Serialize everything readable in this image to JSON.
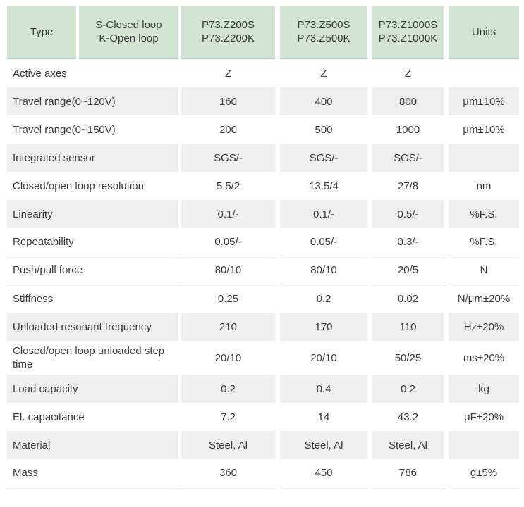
{
  "colors": {
    "header_green": "#d3e4d3",
    "header_green_border": "#a8cfc0",
    "shaded_row": "#efefef",
    "divider": "#dbdbdb",
    "text": "#3b3b3b"
  },
  "table": {
    "header": {
      "type_label": "Type",
      "loop_line1": "S-Closed loop",
      "loop_line2": "K-Open loop",
      "columns": [
        {
          "line1": "P73.Z200S",
          "line2": "P73.Z200K"
        },
        {
          "line1": "P73.Z500S",
          "line2": "P73.Z500K"
        },
        {
          "line1": "P73.Z1000S",
          "line2": "P73.Z1000K"
        }
      ],
      "units_label": "Units"
    },
    "rows": [
      {
        "label": "Active axes",
        "values": [
          "Z",
          "Z",
          "Z"
        ],
        "units": "",
        "shaded": false,
        "divider": false,
        "tall": false
      },
      {
        "label": "Travel range(0~120V)",
        "values": [
          "160",
          "400",
          "800"
        ],
        "units": "μm±10%",
        "shaded": true,
        "divider": false,
        "tall": false
      },
      {
        "label": "Travel range(0~150V)",
        "values": [
          "200",
          "500",
          "1000"
        ],
        "units": "μm±10%",
        "shaded": false,
        "divider": false,
        "tall": false
      },
      {
        "label": "Integrated sensor",
        "values": [
          "SGS/-",
          "SGS/-",
          "SGS/-"
        ],
        "units": "",
        "shaded": true,
        "divider": false,
        "tall": false
      },
      {
        "label": "Closed/open loop resolution",
        "values": [
          "5.5/2",
          "13.5/4",
          "27/8"
        ],
        "units": "nm",
        "shaded": false,
        "divider": false,
        "tall": false
      },
      {
        "label": "Linearity",
        "values": [
          "0.1/-",
          "0.1/-",
          "0.5/-"
        ],
        "units": "%F.S.",
        "shaded": true,
        "divider": false,
        "tall": false
      },
      {
        "label": "Repeatability",
        "values": [
          "0.05/-",
          "0.05/-",
          "0.3/-"
        ],
        "units": "%F.S.",
        "shaded": false,
        "divider": true,
        "tall": false
      },
      {
        "label": "Push/pull force",
        "values": [
          "80/10",
          "80/10",
          "20/5"
        ],
        "units": "N",
        "shaded": false,
        "divider": true,
        "tall": false
      },
      {
        "label": "Stiffness",
        "values": [
          "0.25",
          "0.2",
          "0.02"
        ],
        "units": "N/μm±20%",
        "shaded": false,
        "divider": false,
        "tall": false
      },
      {
        "label": "Unloaded resonant frequency",
        "values": [
          "210",
          "170",
          "110"
        ],
        "units": "Hz±20%",
        "shaded": true,
        "divider": false,
        "tall": false
      },
      {
        "label": "Closed/open loop unloaded step time",
        "values": [
          "20/10",
          "20/10",
          "50/25"
        ],
        "units": "ms±20%",
        "shaded": false,
        "divider": false,
        "tall": true
      },
      {
        "label": "Load capacity",
        "values": [
          "0.2",
          "0.4",
          "0.2"
        ],
        "units": "kg",
        "shaded": true,
        "divider": false,
        "tall": false
      },
      {
        "label": "El. capacitance",
        "values": [
          "7.2",
          "14",
          "43.2"
        ],
        "units": "μF±20%",
        "shaded": false,
        "divider": false,
        "tall": false
      },
      {
        "label": "Material",
        "values": [
          "Steel, Al",
          "Steel, Al",
          "Steel, Al"
        ],
        "units": "",
        "shaded": true,
        "divider": false,
        "tall": false
      },
      {
        "label": "Mass",
        "values": [
          "360",
          "450",
          "786"
        ],
        "units": "g±5%",
        "shaded": false,
        "divider": true,
        "tall": false
      }
    ]
  }
}
